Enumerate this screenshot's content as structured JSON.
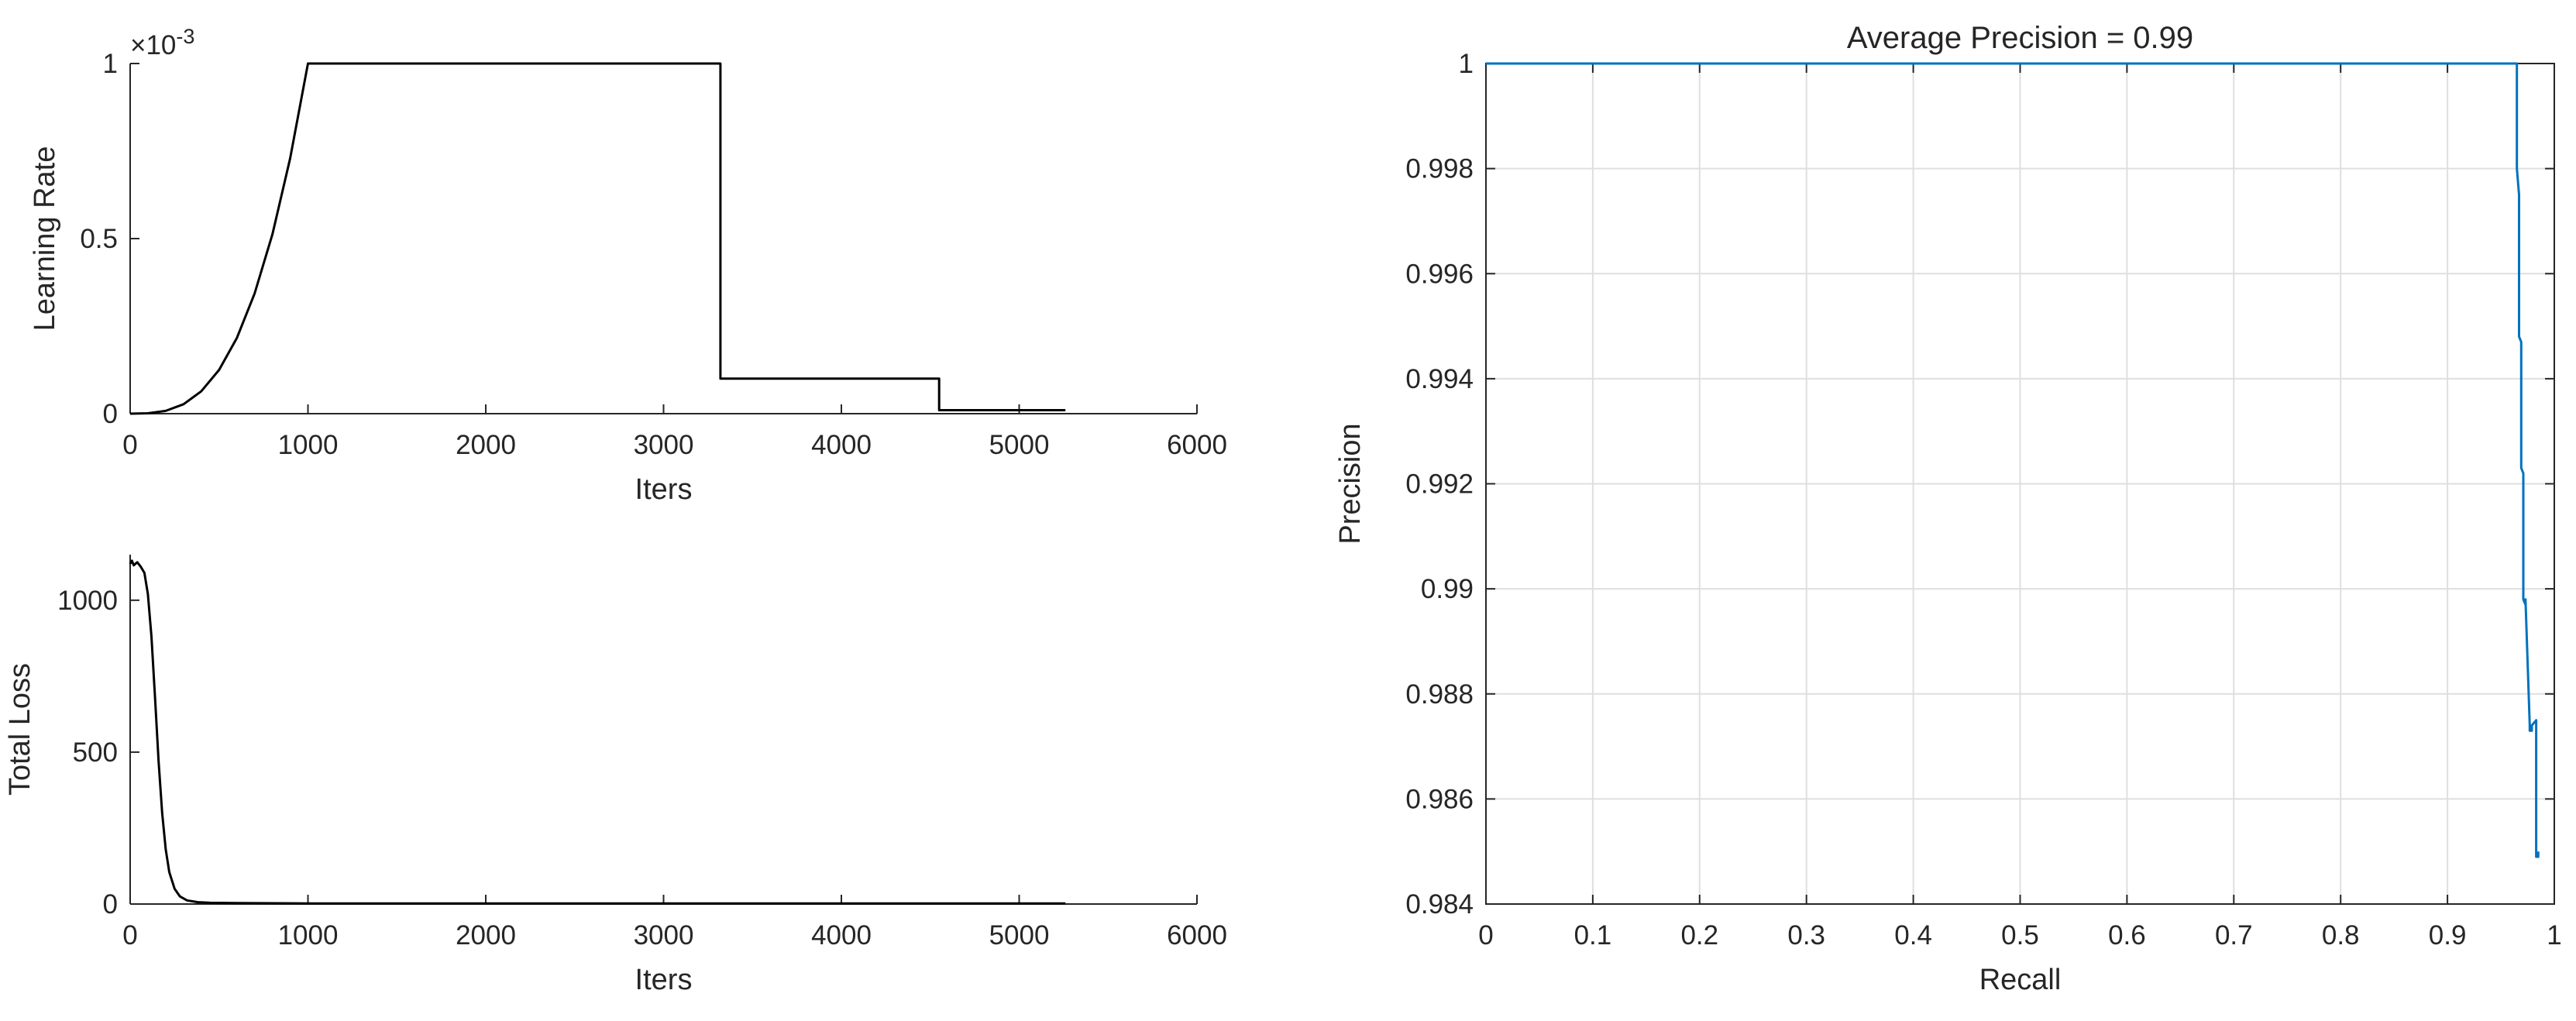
{
  "chart_data": [
    {
      "type": "line",
      "xlabel": "Iters",
      "ylabel": "Learning Rate",
      "y_exponent_label": "×10",
      "y_exponent_power": "-3",
      "xlim": [
        0,
        6000
      ],
      "ylim": [
        0,
        0.001
      ],
      "x_ticks": [
        0,
        1000,
        2000,
        3000,
        4000,
        5000,
        6000
      ],
      "x_tick_labels": [
        "0",
        "1000",
        "2000",
        "3000",
        "4000",
        "5000",
        "6000"
      ],
      "y_ticks": [
        0,
        0.0005,
        0.001
      ],
      "y_tick_labels": [
        "0",
        "0.5",
        "1"
      ],
      "grid": false,
      "series": [
        {
          "color": "#000000",
          "x": [
            0,
            100,
            200,
            300,
            400,
            500,
            600,
            700,
            800,
            900,
            1000,
            3320,
            3320,
            4550,
            4550,
            5260
          ],
          "y": [
            0,
            1e-06,
            8e-06,
            2.7e-05,
            6.4e-05,
            0.000125,
            0.000216,
            0.000343,
            0.000512,
            0.000729,
            0.001,
            0.001,
            0.0001,
            0.0001,
            1e-05,
            1e-05
          ]
        }
      ]
    },
    {
      "type": "line",
      "xlabel": "Iters",
      "ylabel": "Total Loss",
      "xlim": [
        0,
        6000
      ],
      "ylim": [
        0,
        1150
      ],
      "x_ticks": [
        0,
        1000,
        2000,
        3000,
        4000,
        5000,
        6000
      ],
      "x_tick_labels": [
        "0",
        "1000",
        "2000",
        "3000",
        "4000",
        "5000",
        "6000"
      ],
      "y_ticks": [
        0,
        500,
        1000
      ],
      "y_tick_labels": [
        "0",
        "500",
        "1000"
      ],
      "grid": false,
      "series": [
        {
          "color": "#000000",
          "x": [
            0,
            10,
            20,
            40,
            60,
            80,
            100,
            120,
            140,
            160,
            180,
            200,
            220,
            250,
            280,
            320,
            380,
            450,
            600,
            1000,
            2000,
            3000,
            4000,
            5000,
            5260
          ],
          "y": [
            1120,
            1130,
            1115,
            1125,
            1110,
            1090,
            1020,
            880,
            680,
            470,
            300,
            180,
            105,
            50,
            25,
            12,
            6,
            4,
            3,
            2,
            2,
            2,
            2,
            2,
            2
          ]
        }
      ]
    },
    {
      "type": "line",
      "title": "Average Precision = 0.99",
      "xlabel": "Recall",
      "ylabel": "Precision",
      "xlim": [
        0,
        1
      ],
      "ylim": [
        0.984,
        1
      ],
      "x_ticks": [
        0,
        0.1,
        0.2,
        0.3,
        0.4,
        0.5,
        0.6,
        0.7,
        0.8,
        0.9,
        1
      ],
      "x_tick_labels": [
        "0",
        "0.1",
        "0.2",
        "0.3",
        "0.4",
        "0.5",
        "0.6",
        "0.7",
        "0.8",
        "0.9",
        "1"
      ],
      "y_ticks": [
        0.984,
        0.986,
        0.988,
        0.99,
        0.992,
        0.994,
        0.996,
        0.998,
        1
      ],
      "y_tick_labels": [
        "0.984",
        "0.986",
        "0.988",
        "0.99",
        "0.992",
        "0.994",
        "0.996",
        "0.998",
        "1"
      ],
      "grid": true,
      "series": [
        {
          "color": "#0072BD",
          "x": [
            0,
            0.965,
            0.965,
            0.967,
            0.967,
            0.969,
            0.969,
            0.971,
            0.971,
            0.973,
            0.973,
            0.977,
            0.977,
            0.979,
            0.979,
            0.983,
            0.983,
            0.985,
            0.985
          ],
          "y": [
            1,
            1,
            0.998,
            0.9975,
            0.9948,
            0.9947,
            0.9923,
            0.9922,
            0.9898,
            0.9897,
            0.9898,
            0.9874,
            0.9873,
            0.9873,
            0.9874,
            0.9875,
            0.9849,
            0.9849,
            0.985
          ]
        }
      ]
    }
  ]
}
